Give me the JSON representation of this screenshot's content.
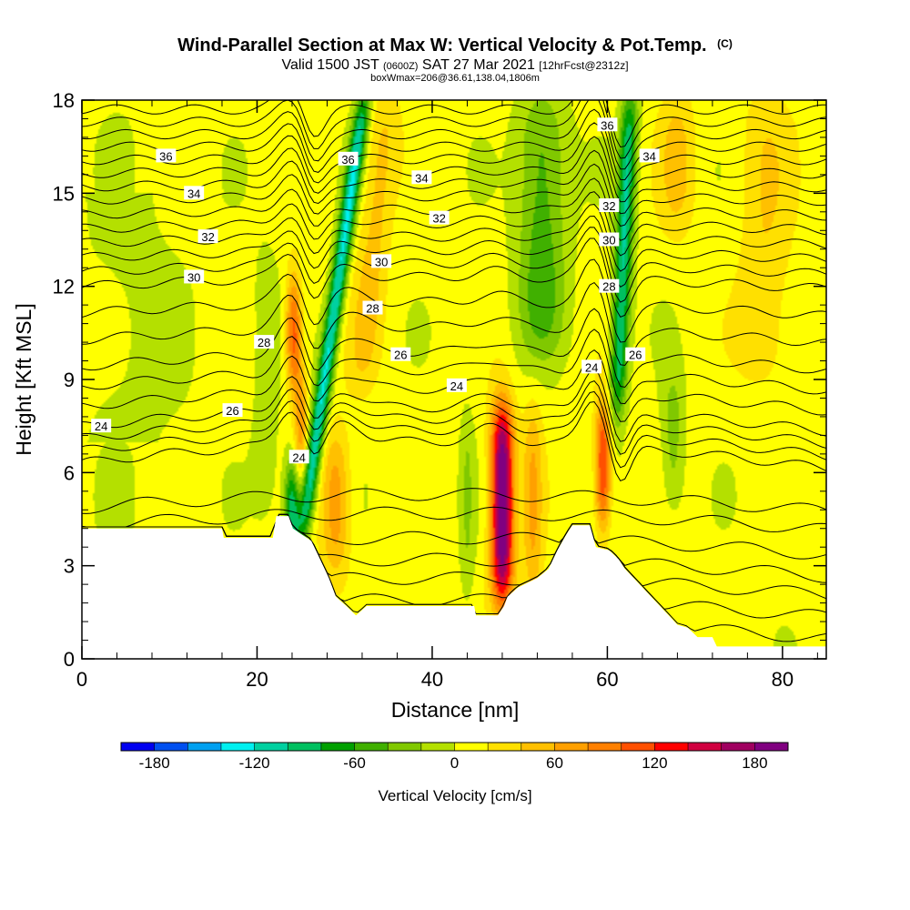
{
  "chart_data": {
    "type": "heatmap",
    "title": "Wind-Parallel Section at Max W: Vertical Velocity & Pot.Temp.",
    "copyright": "(C)",
    "subtitle": {
      "valid": "Valid 1500 JST",
      "utc": "(0600Z)",
      "date": "SAT 27 Mar 2021",
      "forecast": "[12hrFcst@2312z]"
    },
    "box_info": "boxWmax=206@36.61,138.04,1806m",
    "xlabel": "Distance [nm]",
    "ylabel": "Height [Kft MSL]",
    "xlim": [
      0,
      85
    ],
    "ylim": [
      0,
      18
    ],
    "x_ticks": [
      0,
      20,
      40,
      60,
      80
    ],
    "y_ticks": [
      0,
      3,
      6,
      9,
      12,
      15,
      18
    ],
    "colorbar": {
      "label": "Vertical Velocity [cm/s]",
      "ticks": [
        -180,
        -120,
        -60,
        0,
        60,
        120,
        180
      ],
      "min": -200,
      "max": 200,
      "colors": [
        "#0000f0",
        "#0050f0",
        "#00a0f0",
        "#00f0f0",
        "#00d0a0",
        "#00c060",
        "#00a000",
        "#40b000",
        "#80c800",
        "#b4e000",
        "#ffff00",
        "#ffe000",
        "#ffc000",
        "#ffa000",
        "#ff8000",
        "#ff5000",
        "#ff0000",
        "#d00040",
        "#a00060",
        "#800080"
      ]
    },
    "velocity_features": [
      {
        "x": 25.2,
        "tilt": 0.5,
        "z_low": 4.0,
        "z_high": 18,
        "sigma": 0.9,
        "value": -130
      },
      {
        "x": 24.0,
        "tilt": 0.0,
        "z_low": 3.8,
        "z_high": 6.0,
        "sigma": 0.9,
        "value": -140
      },
      {
        "x": 24.2,
        "tilt": 0.0,
        "z_low": 9.0,
        "z_high": 12.0,
        "sigma": 0.9,
        "value": 120
      },
      {
        "x": 25.0,
        "tilt": 0.0,
        "z_low": 6.0,
        "z_high": 9.0,
        "sigma": 0.8,
        "value": 70
      },
      {
        "x": 30.5,
        "tilt": 0.3,
        "z_low": 9.0,
        "z_high": 18,
        "sigma": 1.8,
        "value": 40
      },
      {
        "x": 29.0,
        "tilt": 0.0,
        "z_low": 3.0,
        "z_high": 7.0,
        "sigma": 1.6,
        "value": 70
      },
      {
        "x": 21.0,
        "tilt": 0.0,
        "z_low": 5.0,
        "z_high": 13.0,
        "sigma": 1.4,
        "value": -25
      },
      {
        "x": 48.0,
        "tilt": 0.0,
        "z_low": 2.0,
        "z_high": 8.0,
        "sigma": 1.3,
        "value": 200
      },
      {
        "x": 52.5,
        "tilt": 0.0,
        "z_low": 10.0,
        "z_high": 18,
        "sigma": 2.8,
        "value": -60
      },
      {
        "x": 51.5,
        "tilt": 0.0,
        "z_low": 2.0,
        "z_high": 8.0,
        "sigma": 1.1,
        "value": 50
      },
      {
        "x": 44.0,
        "tilt": 0.0,
        "z_low": 2.0,
        "z_high": 8.0,
        "sigma": 0.8,
        "value": -25
      },
      {
        "x": 59.5,
        "tilt": 0.0,
        "z_low": 4.5,
        "z_high": 8.0,
        "sigma": 0.9,
        "value": 130
      },
      {
        "x": 60.5,
        "tilt": 0.15,
        "z_low": 8.0,
        "z_high": 18,
        "sigma": 1.0,
        "value": -110
      },
      {
        "x": 67.5,
        "tilt": 0.0,
        "z_low": 5.0,
        "z_high": 9.0,
        "sigma": 1.3,
        "value": -40
      },
      {
        "x": 78.0,
        "tilt": 0.0,
        "z_low": 9.0,
        "z_high": 18,
        "sigma": 3.0,
        "value": 30
      },
      {
        "x": 68.0,
        "tilt": 0.0,
        "z_low": 14.0,
        "z_high": 18,
        "sigma": 2.0,
        "value": 40
      }
    ],
    "terrain": [
      [
        0,
        4.2
      ],
      [
        16,
        4.2
      ],
      [
        16.2,
        3.9
      ],
      [
        21.8,
        3.9
      ],
      [
        22.2,
        4.6
      ],
      [
        23.6,
        4.6
      ],
      [
        24.1,
        4.2
      ],
      [
        26.2,
        3.8
      ],
      [
        27.2,
        3.2
      ],
      [
        28.2,
        2.6
      ],
      [
        29.0,
        2.0
      ],
      [
        30.2,
        1.7
      ],
      [
        31.3,
        1.4
      ],
      [
        32.5,
        1.7
      ],
      [
        44.8,
        1.7
      ],
      [
        45.0,
        1.4
      ],
      [
        47.5,
        1.4
      ],
      [
        48.2,
        1.7
      ],
      [
        48.6,
        2.0
      ],
      [
        49.8,
        2.3
      ],
      [
        52.0,
        2.6
      ],
      [
        53.3,
        2.9
      ],
      [
        54.3,
        3.5
      ],
      [
        55.3,
        4.0
      ],
      [
        56.0,
        4.3
      ],
      [
        58.0,
        4.3
      ],
      [
        58.7,
        3.6
      ],
      [
        60.2,
        3.5
      ],
      [
        61.3,
        3.2
      ],
      [
        62.0,
        2.9
      ],
      [
        63.0,
        2.6
      ],
      [
        64.0,
        2.3
      ],
      [
        65.0,
        2.0
      ],
      [
        66.0,
        1.7
      ],
      [
        67.0,
        1.4
      ],
      [
        68.0,
        1.1
      ],
      [
        69.2,
        1.0
      ],
      [
        70.3,
        0.7
      ],
      [
        72.0,
        0.7
      ],
      [
        72.5,
        0.4
      ],
      [
        85,
        0.4
      ]
    ],
    "theta_lines": [
      {
        "base": 7.0,
        "label": "24",
        "labels": [
          [
            2.2,
            7.5
          ],
          [
            24.8,
            6.5
          ],
          [
            42.8,
            8.8
          ],
          [
            58.2,
            9.4
          ]
        ]
      },
      {
        "base": 8.1,
        "label": "26",
        "labels": [
          [
            17.2,
            8.0
          ],
          [
            36.4,
            9.8
          ],
          [
            63.2,
            9.8
          ]
        ]
      },
      {
        "base": 9.9,
        "label": "28",
        "labels": [
          [
            20.8,
            10.2
          ],
          [
            33.2,
            11.3
          ],
          [
            60.2,
            12.0
          ]
        ]
      },
      {
        "base": 12.3,
        "label": "30",
        "labels": [
          [
            12.8,
            12.3
          ],
          [
            34.2,
            12.8
          ],
          [
            60.2,
            13.5
          ]
        ]
      },
      {
        "base": 13.6,
        "label": "32",
        "labels": [
          [
            14.4,
            13.6
          ],
          [
            40.8,
            14.2
          ],
          [
            60.2,
            14.6
          ]
        ]
      },
      {
        "base": 14.9,
        "label": "34",
        "labels": [
          [
            12.8,
            15.0
          ],
          [
            38.8,
            15.5
          ],
          [
            64.8,
            16.2
          ]
        ]
      },
      {
        "base": 16.1,
        "label": "36",
        "labels": [
          [
            9.6,
            16.2
          ],
          [
            30.4,
            16.1
          ],
          [
            60.0,
            17.2
          ]
        ]
      }
    ],
    "theta_low_contours": [
      5.3,
      4.7,
      3.9,
      3.2,
      2.6,
      1.9,
      1.2
    ]
  }
}
